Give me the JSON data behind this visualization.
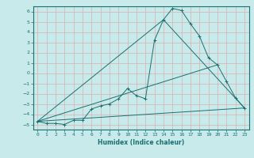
{
  "xlabel": "Humidex (Indice chaleur)",
  "bg_color": "#c8eaea",
  "line_color": "#1a7070",
  "grid_color": "#b0d8d8",
  "xlim": [
    -0.5,
    23.5
  ],
  "ylim": [
    -5.5,
    6.5
  ],
  "yticks": [
    -5,
    -4,
    -3,
    -2,
    -1,
    0,
    1,
    2,
    3,
    4,
    5,
    6
  ],
  "xticks": [
    0,
    1,
    2,
    3,
    4,
    5,
    6,
    7,
    8,
    9,
    10,
    11,
    12,
    13,
    14,
    15,
    16,
    17,
    18,
    19,
    20,
    21,
    22,
    23
  ],
  "series": [
    {
      "x": [
        0,
        1,
        2,
        3,
        4,
        5,
        6,
        7,
        8,
        9,
        10,
        11,
        12,
        13,
        14,
        15,
        16,
        17,
        18,
        19,
        20,
        21,
        22,
        23
      ],
      "y": [
        -4.7,
        -4.9,
        -4.9,
        -5.0,
        -4.6,
        -4.6,
        -3.5,
        -3.2,
        -3.0,
        -2.5,
        -1.5,
        -2.2,
        -2.5,
        3.2,
        5.2,
        6.3,
        6.1,
        4.8,
        3.6,
        1.5,
        0.8,
        -0.8,
        -2.4,
        -3.4
      ],
      "marker": "+"
    },
    {
      "x": [
        0,
        20
      ],
      "y": [
        -4.7,
        0.8
      ],
      "marker": null
    },
    {
      "x": [
        0,
        14,
        23
      ],
      "y": [
        -4.7,
        5.2,
        -3.4
      ],
      "marker": null
    },
    {
      "x": [
        0,
        23
      ],
      "y": [
        -4.7,
        -3.4
      ],
      "marker": null
    }
  ]
}
